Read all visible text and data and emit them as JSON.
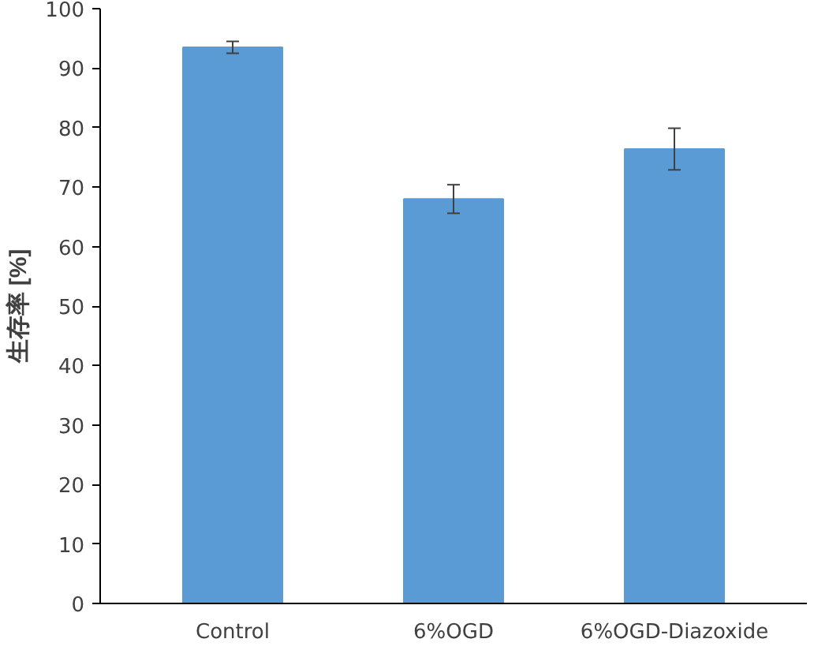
{
  "chart_data": {
    "type": "bar",
    "ylabel": "生存率 [%]",
    "categories": [
      "Control",
      "6%OGD",
      "6%OGD-Diazoxide"
    ],
    "values": [
      93.5,
      68.0,
      76.4
    ],
    "errors": [
      1.0,
      2.4,
      3.5
    ],
    "color": "#5b9bd5",
    "ylim": [
      0,
      100
    ],
    "yticks": [
      0,
      10,
      20,
      30,
      40,
      50,
      60,
      70,
      80,
      90,
      100
    ],
    "grid": false
  }
}
